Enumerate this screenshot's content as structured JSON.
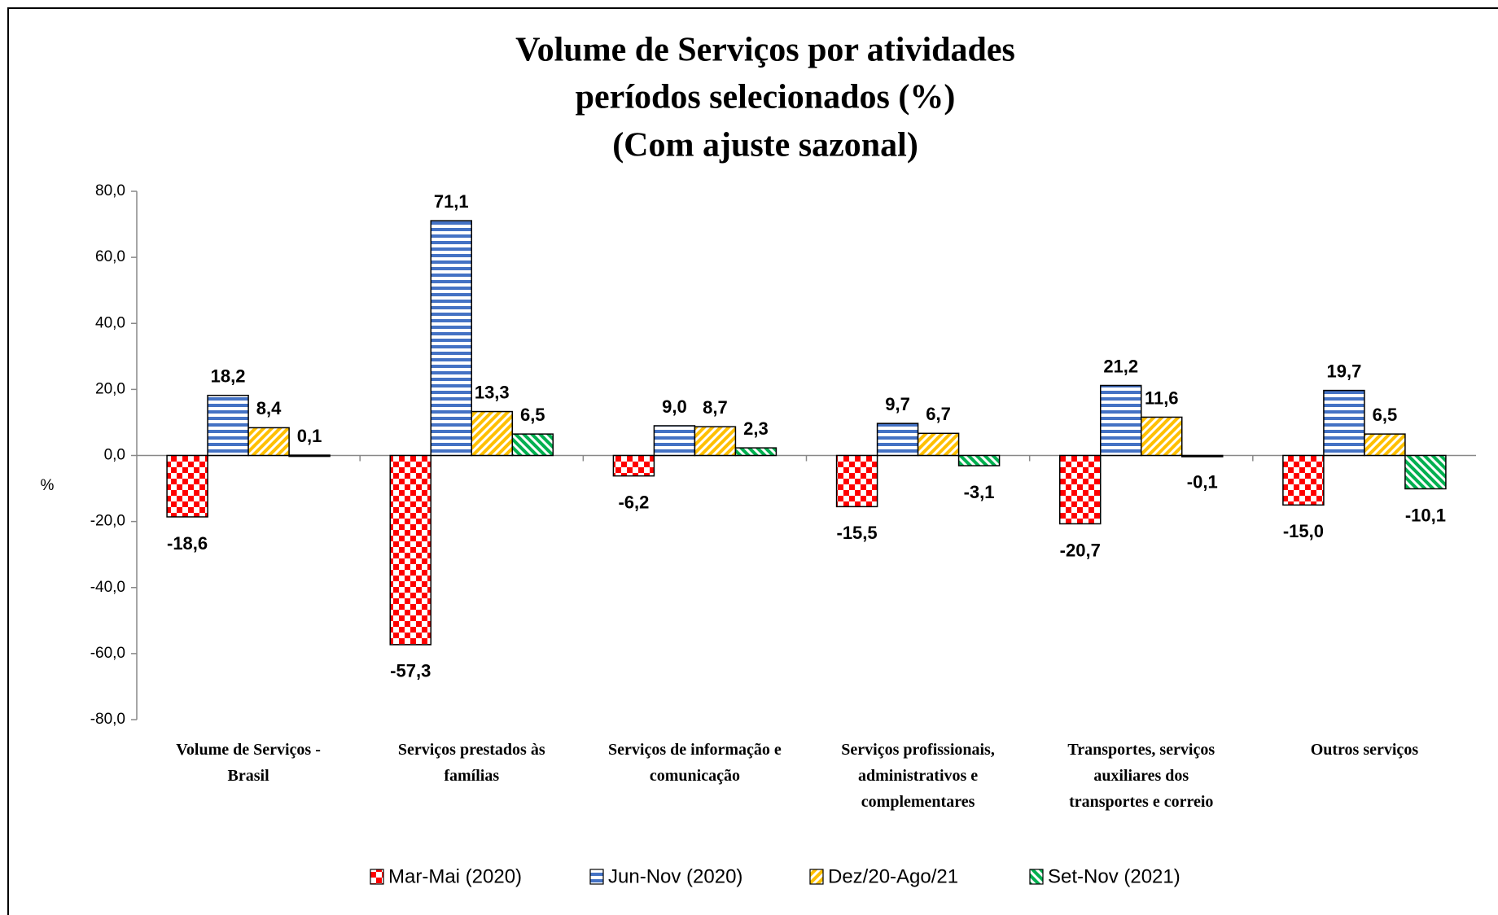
{
  "chart_data": {
    "type": "bar",
    "title": [
      "Volume de Serviços por atividades",
      "períodos selecionados (%)",
      "(Com ajuste sazonal)"
    ],
    "y_label": "%",
    "categories": [
      "Volume de Serviços -\nBrasil",
      "Serviços prestados às\nfamílias",
      "Serviços de informação e\ncomunicação",
      "Serviços profissionais,\nadministrativos  e\ncomplementares",
      "Transportes, serviços\nauxiliares dos\ntransportes e correio",
      "Outros serviços"
    ],
    "series": [
      {
        "name": "Mar-Mai (2020)",
        "color": "#ff0000",
        "pattern": "checker",
        "values": [
          -18.6,
          -57.3,
          -6.2,
          -15.5,
          -20.7,
          -15.0
        ],
        "value_labels": [
          "-18,6",
          "-57,3",
          "-6,2",
          "-15,5",
          "-20,7",
          "-15,0"
        ]
      },
      {
        "name": "Jun-Nov (2020)",
        "color": "#4472c4",
        "pattern": "horizontal",
        "values": [
          18.2,
          71.1,
          9.0,
          9.7,
          21.2,
          19.7
        ],
        "value_labels": [
          "18,2",
          "71,1",
          "9,0",
          "9,7",
          "21,2",
          "19,7"
        ]
      },
      {
        "name": "Dez/20-Ago/21",
        "color": "#ffc000",
        "pattern": "diagonal",
        "values": [
          8.4,
          13.3,
          8.7,
          6.7,
          11.6,
          6.5
        ],
        "value_labels": [
          "8,4",
          "13,3",
          "8,7",
          "6,7",
          "11,6",
          "6,5"
        ]
      },
      {
        "name": "Set-Nov (2021)",
        "color": "#00b050",
        "pattern": "diagonal-reverse",
        "values": [
          0.1,
          6.5,
          2.3,
          -3.1,
          -0.1,
          -10.1
        ],
        "value_labels": [
          "0,1",
          "6,5",
          "2,3",
          "-3,1",
          "-0,1",
          "-10,1"
        ]
      }
    ],
    "ylim": [
      -80,
      80
    ],
    "yticks": [
      {
        "value": -80,
        "label": "-80,0"
      },
      {
        "value": -60,
        "label": "-60,0"
      },
      {
        "value": -40,
        "label": "-40,0"
      },
      {
        "value": -20,
        "label": "-20,0"
      },
      {
        "value": 0,
        "label": "0,0"
      },
      {
        "value": 20,
        "label": "20,0"
      },
      {
        "value": 40,
        "label": "40,0"
      },
      {
        "value": 60,
        "label": "60,0"
      },
      {
        "value": 80,
        "label": "80,0"
      }
    ],
    "legend": "bottom"
  }
}
